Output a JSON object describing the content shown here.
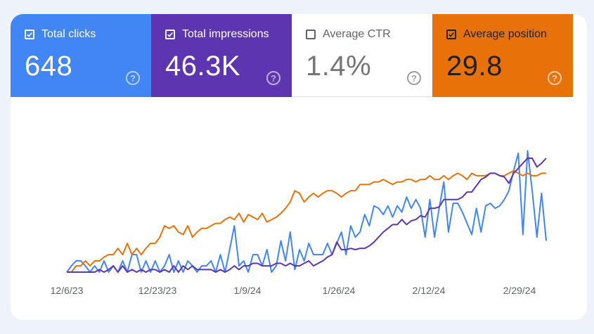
{
  "metrics": {
    "total_clicks": {
      "label": "Total clicks",
      "value": "648",
      "checked": true,
      "color": "#4285f4"
    },
    "total_impressions": {
      "label": "Total impressions",
      "value": "46.3K",
      "checked": true,
      "color": "#5e35b1"
    },
    "average_ctr": {
      "label": "Average CTR",
      "value": "1.4%",
      "checked": false,
      "color": "#ffffff"
    },
    "average_position": {
      "label": "Average position",
      "value": "29.8",
      "checked": true,
      "color": "#e8710a"
    },
    "help_glyph": "?"
  },
  "chart_data": {
    "type": "line",
    "x_tick_labels": [
      "12/6/23",
      "12/23/23",
      "1/9/24",
      "1/26/24",
      "2/12/24",
      "2/29/24"
    ],
    "y_scale": "normalized 0-1 per series (chart shows no y-axis values)",
    "grid": false,
    "legend": "none",
    "series": [
      {
        "metric": "total_clicks",
        "color": "#4285f4",
        "values": [
          0.0,
          0.05,
          0.09,
          0.09,
          0.05,
          0.0,
          0.05,
          0.0,
          0.09,
          0.0,
          0.05,
          0.0,
          0.09,
          0.0,
          0.14,
          0.14,
          0.0,
          0.09,
          0.0,
          0.09,
          0.0,
          0.05,
          0.14,
          0.0,
          0.09,
          0.0,
          0.09,
          0.05,
          0.0,
          0.05,
          0.05,
          0.09,
          0.0,
          0.14,
          0.0,
          0.18,
          0.37,
          0.05,
          0.09,
          0.0,
          0.14,
          0.14,
          0.05,
          0.18,
          0.0,
          0.05,
          0.25,
          0.09,
          0.32,
          0.02,
          0.18,
          0.09,
          0.23,
          0.14,
          0.14,
          0.14,
          0.23,
          0.14,
          0.23,
          0.32,
          0.14,
          0.37,
          0.28,
          0.32,
          0.46,
          0.37,
          0.53,
          0.51,
          0.46,
          0.53,
          0.44,
          0.53,
          0.48,
          0.6,
          0.51,
          0.58,
          0.51,
          0.28,
          0.58,
          0.28,
          0.51,
          0.72,
          0.32,
          0.55,
          0.55,
          0.48,
          0.39,
          0.3,
          0.51,
          0.32,
          0.53,
          0.55,
          0.51,
          0.53,
          0.58,
          0.65,
          0.81,
          0.95,
          0.3,
          0.97,
          0.65,
          0.28,
          0.63,
          0.25
        ]
      },
      {
        "metric": "total_impressions",
        "color": "#5e35b1",
        "values": [
          0.0,
          0.0,
          0.0,
          0.0,
          0.0,
          0.0,
          0.0,
          0.02,
          0.0,
          0.02,
          0.05,
          0.0,
          0.05,
          0.0,
          0.02,
          0.0,
          0.02,
          0.0,
          0.02,
          0.02,
          0.0,
          0.02,
          0.0,
          0.05,
          0.0,
          0.05,
          0.02,
          0.05,
          0.02,
          0.02,
          0.02,
          0.02,
          0.0,
          0.02,
          0.0,
          0.02,
          0.05,
          0.02,
          0.05,
          0.05,
          0.07,
          0.07,
          0.05,
          0.05,
          0.05,
          0.07,
          0.07,
          0.05,
          0.07,
          0.05,
          0.05,
          0.07,
          0.09,
          0.05,
          0.07,
          0.09,
          0.12,
          0.14,
          0.24,
          0.18,
          0.18,
          0.19,
          0.18,
          0.19,
          0.19,
          0.21,
          0.24,
          0.28,
          0.32,
          0.35,
          0.38,
          0.38,
          0.42,
          0.38,
          0.41,
          0.42,
          0.45,
          0.44,
          0.51,
          0.51,
          0.52,
          0.58,
          0.58,
          0.58,
          0.58,
          0.6,
          0.64,
          0.64,
          0.69,
          0.74,
          0.76,
          0.79,
          0.79,
          0.77,
          0.76,
          0.71,
          0.79,
          0.83,
          0.87,
          0.91,
          0.91,
          0.84,
          0.87,
          0.91
        ]
      },
      {
        "metric": "average_position",
        "color": "#e8710a",
        "values": [
          0.0,
          0.0,
          0.05,
          0.05,
          0.09,
          0.05,
          0.09,
          0.09,
          0.12,
          0.14,
          0.14,
          0.19,
          0.14,
          0.23,
          0.14,
          0.19,
          0.14,
          0.19,
          0.23,
          0.23,
          0.28,
          0.37,
          0.35,
          0.37,
          0.32,
          0.3,
          0.37,
          0.28,
          0.32,
          0.35,
          0.35,
          0.37,
          0.39,
          0.39,
          0.42,
          0.44,
          0.42,
          0.47,
          0.4,
          0.46,
          0.44,
          0.42,
          0.47,
          0.4,
          0.42,
          0.44,
          0.47,
          0.51,
          0.56,
          0.65,
          0.63,
          0.56,
          0.6,
          0.63,
          0.6,
          0.63,
          0.65,
          0.65,
          0.63,
          0.6,
          0.63,
          0.65,
          0.65,
          0.7,
          0.7,
          0.7,
          0.72,
          0.72,
          0.74,
          0.72,
          0.7,
          0.72,
          0.72,
          0.74,
          0.74,
          0.72,
          0.74,
          0.74,
          0.77,
          0.74,
          0.74,
          0.77,
          0.74,
          0.77,
          0.79,
          0.77,
          0.74,
          0.79,
          0.77,
          0.77,
          0.77,
          0.79,
          0.79,
          0.77,
          0.77,
          0.79,
          0.81,
          0.79,
          0.77,
          0.79,
          0.77,
          0.77,
          0.79,
          0.79
        ]
      }
    ]
  }
}
